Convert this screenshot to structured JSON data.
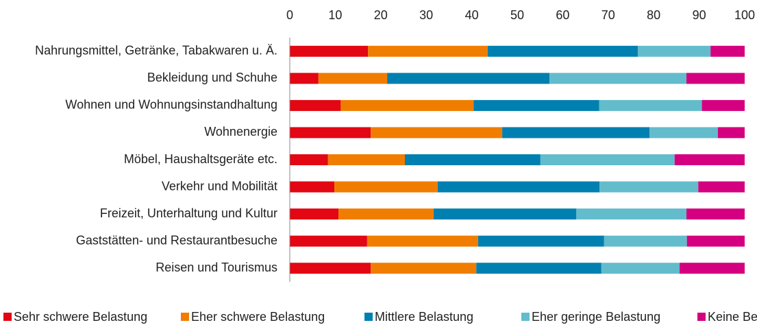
{
  "chart_data": {
    "type": "stacked_barh",
    "categories": [
      "Nahrungsmittel, Getränke, Tabakwaren u. Ä.",
      "Bekleidung und Schuhe",
      "Wohnen und Wohnungsinstandhaltung",
      "Wohnenergie",
      "Möbel, Haushaltsgeräte etc.",
      "Verkehr und Mobilität",
      "Freizeit, Unterhaltung und Kultur",
      "Gaststätten- und Restaurantbesuche",
      "Reisen und Tourismus"
    ],
    "series": [
      {
        "name": "Sehr schwere Belastung",
        "color": "#e30613",
        "values": [
          17.2,
          6.3,
          11.2,
          17.8,
          8.4,
          9.8,
          10.7,
          17.0,
          17.8
        ]
      },
      {
        "name": "Eher schwere Belastung",
        "color": "#f07d00",
        "values": [
          26.3,
          15.1,
          29.2,
          28.9,
          16.9,
          22.7,
          20.9,
          24.4,
          23.2
        ]
      },
      {
        "name": "Mittlere Belastung",
        "color": "#0080b0",
        "values": [
          33.0,
          35.7,
          27.6,
          32.4,
          29.8,
          35.6,
          31.4,
          27.7,
          27.5
        ]
      },
      {
        "name": "Eher geringe Belastung",
        "color": "#63bccb",
        "values": [
          16.0,
          30.1,
          22.6,
          15.0,
          29.5,
          21.7,
          24.2,
          18.2,
          17.2
        ]
      },
      {
        "name": "Keine Belastung",
        "color": "#d5007f",
        "values": [
          7.5,
          12.8,
          9.4,
          5.9,
          15.4,
          10.2,
          12.8,
          12.7,
          14.3
        ]
      }
    ],
    "xlim": [
      0,
      100
    ],
    "xticks": [
      0,
      10,
      20,
      30,
      40,
      50,
      60,
      70,
      80,
      90,
      100
    ],
    "grid": false,
    "legend": "bottom"
  }
}
